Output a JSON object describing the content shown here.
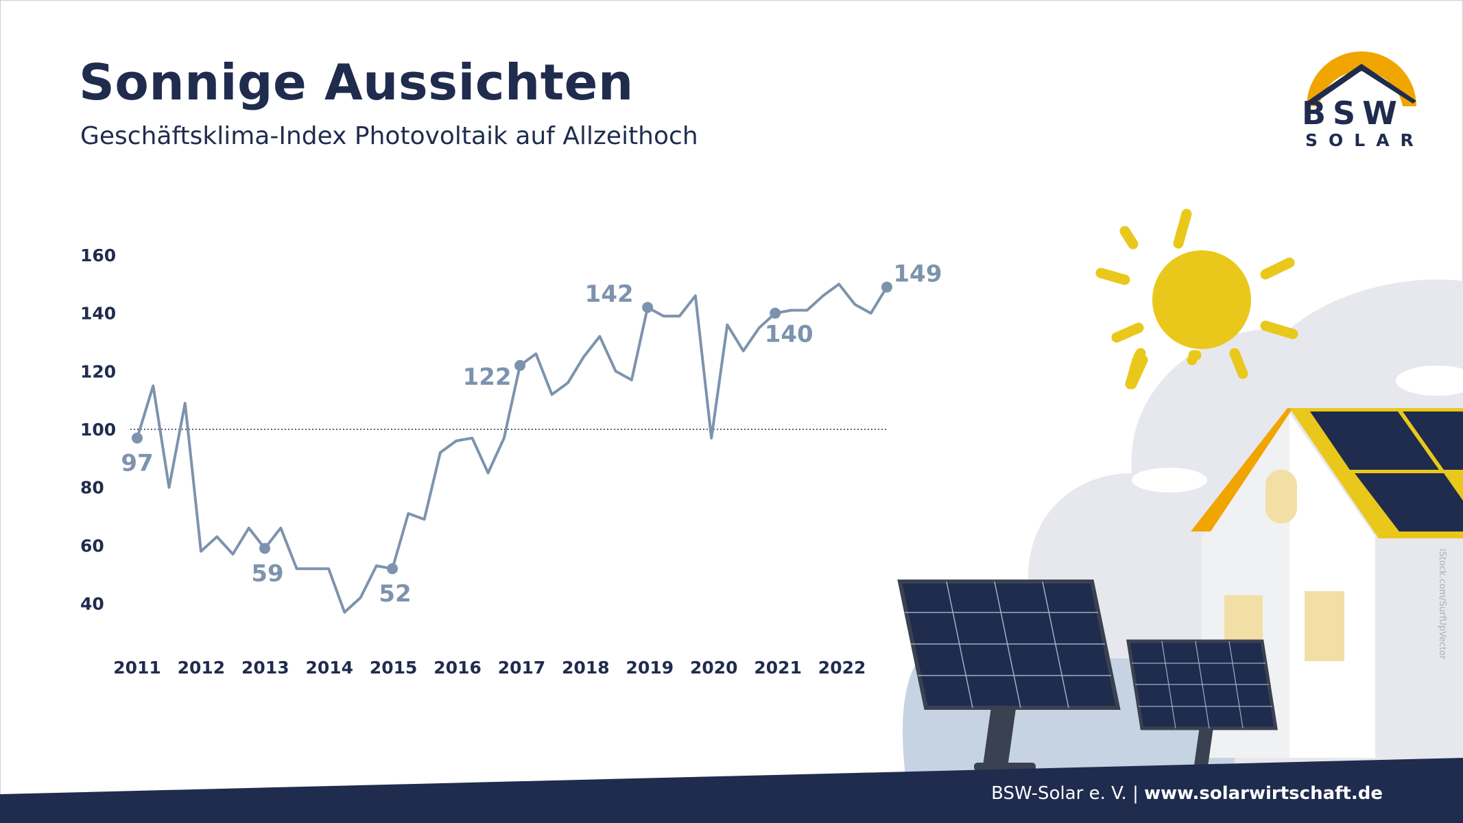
{
  "header": {
    "title": "Sonnige Aussichten",
    "subtitle": "Geschäftsklima-Index Photovoltaik auf Allzeithoch"
  },
  "logo": {
    "name": "BSW",
    "sub": "SOLAR"
  },
  "credit": "iStock.com/SurfUpVector",
  "footer": {
    "org": "BSW-Solar e. V. |",
    "url": "www.solarwirtschaft.de"
  },
  "colors": {
    "navy": "#1f2c4e",
    "line": "#7d93ad",
    "sun": "#e9c81b",
    "cloud": "#e6e8ed"
  },
  "chart_data": {
    "type": "line",
    "y_ticks": [
      160,
      140,
      120,
      100,
      80,
      60,
      40
    ],
    "ylim": [
      40,
      160
    ],
    "reference_line": 100,
    "x_ticks": [
      "2011",
      "2012",
      "2013",
      "2014",
      "2015",
      "2016",
      "2017",
      "2018",
      "2019",
      "2020",
      "2021",
      "2022"
    ],
    "series": [
      {
        "values": [
          97,
          115,
          80,
          109,
          58,
          63,
          57,
          66,
          59,
          66,
          52,
          52,
          52,
          37,
          42,
          53,
          52,
          71,
          69,
          92,
          96,
          97,
          85,
          97,
          122,
          126,
          112,
          116,
          125,
          132,
          120,
          117,
          142,
          139,
          139,
          146,
          97,
          136,
          127,
          135,
          140,
          141,
          141,
          146,
          150,
          143,
          140,
          149
        ]
      }
    ],
    "labeled_points": [
      {
        "index": 0,
        "value": "97"
      },
      {
        "index": 8,
        "value": "59"
      },
      {
        "index": 16,
        "value": "52"
      },
      {
        "index": 24,
        "value": "122"
      },
      {
        "index": 32,
        "value": "142"
      },
      {
        "index": 40,
        "value": "140"
      },
      {
        "index": 47,
        "value": "149"
      }
    ]
  }
}
